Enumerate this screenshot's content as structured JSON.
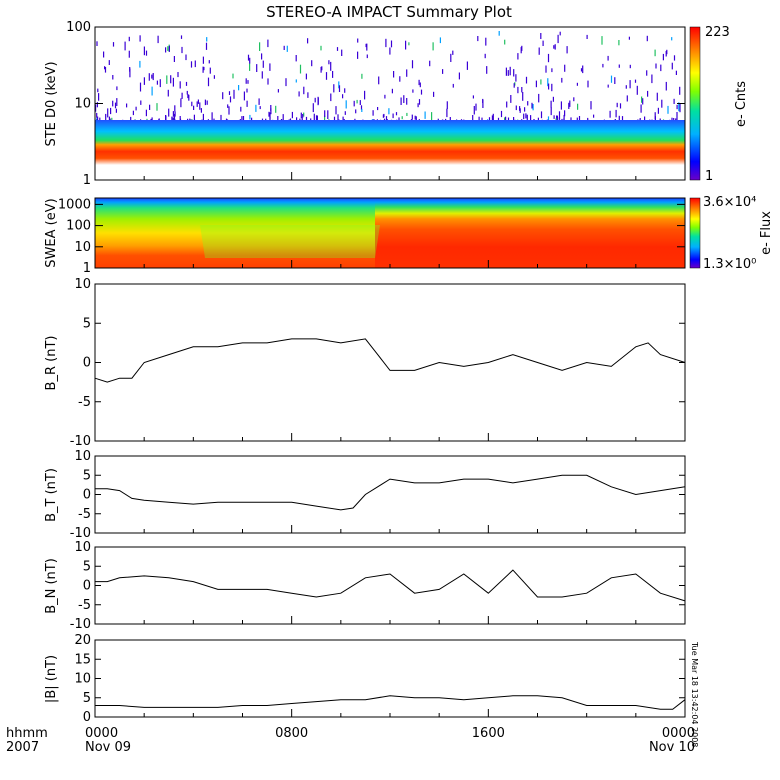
{
  "chart_data": [
    {
      "type": "heatmap",
      "title": "STEREO-A IMPACT Summary Plot",
      "ylabel": "STE D0 (keV)",
      "y_scale": "log",
      "ylim": [
        1,
        100
      ],
      "y_ticks": [
        "1",
        "10",
        "100"
      ],
      "colorbar_label": "e- Cnts",
      "colorbar_max": "223",
      "colorbar_min": "1"
    },
    {
      "type": "heatmap",
      "ylabel": "SWEA (eV)",
      "y_scale": "log",
      "ylim": [
        1,
        2000
      ],
      "y_ticks": [
        "1",
        "10",
        "100",
        "1000"
      ],
      "colorbar_label": "e- Flux",
      "colorbar_max": "3.6×10⁴",
      "colorbar_min": "1.3×10⁰"
    },
    {
      "type": "line",
      "ylabel": "B_R (nT)",
      "ylim": [
        -10,
        10
      ],
      "y_ticks": [
        "-10",
        "-5",
        "0",
        "5",
        "10"
      ],
      "x_hours": [
        0,
        0.5,
        1,
        1.5,
        2,
        3,
        4,
        5,
        6,
        7,
        8,
        9,
        10,
        11,
        11.5,
        12,
        13,
        14,
        15,
        16,
        17,
        18,
        19,
        20,
        21,
        22,
        22.5,
        23,
        24
      ],
      "values": [
        -2,
        -2.5,
        -2,
        -2,
        0,
        1,
        2,
        2,
        2.5,
        2.5,
        3,
        3,
        2.5,
        3,
        1,
        -1,
        -1,
        0,
        -0.5,
        0,
        1,
        0,
        -1,
        0,
        -0.5,
        2,
        2.5,
        1,
        0
      ]
    },
    {
      "type": "line",
      "ylabel": "B_T (nT)",
      "ylim": [
        -10,
        10
      ],
      "y_ticks": [
        "-10",
        "-5",
        "0",
        "5",
        "10"
      ],
      "x_hours": [
        0,
        0.5,
        1,
        1.5,
        2,
        3,
        4,
        5,
        6,
        7,
        8,
        9,
        10,
        10.5,
        11,
        11.5,
        12,
        13,
        14,
        15,
        16,
        17,
        18,
        19,
        20,
        21,
        22,
        23,
        24
      ],
      "values": [
        1.5,
        1.5,
        1,
        -1,
        -1.5,
        -2,
        -2.5,
        -2,
        -2,
        -2,
        -2,
        -3,
        -4,
        -3.5,
        0,
        2,
        4,
        3,
        3,
        4,
        4,
        3,
        4,
        5,
        5,
        2,
        0,
        1,
        2
      ]
    },
    {
      "type": "line",
      "ylabel": "B_N (nT)",
      "ylim": [
        -10,
        10
      ],
      "y_ticks": [
        "-10",
        "-5",
        "0",
        "5",
        "10"
      ],
      "x_hours": [
        0,
        0.5,
        1,
        2,
        3,
        4,
        5,
        6,
        7,
        8,
        9,
        10,
        11,
        12,
        13,
        14,
        15,
        16,
        17,
        18,
        19,
        20,
        21,
        22,
        23,
        24
      ],
      "values": [
        1,
        1,
        2,
        2.5,
        2,
        1,
        -1,
        -1,
        -1,
        -2,
        -3,
        -2,
        2,
        3,
        -2,
        -1,
        3,
        -2,
        4,
        -3,
        -3,
        -2,
        2,
        3,
        -2,
        -4
      ]
    },
    {
      "type": "line",
      "ylabel": "|B| (nT)",
      "ylim": [
        0,
        20
      ],
      "y_ticks": [
        "0",
        "5",
        "10",
        "15",
        "20"
      ],
      "x_hours": [
        0,
        1,
        2,
        3,
        4,
        5,
        6,
        7,
        8,
        9,
        10,
        11,
        12,
        13,
        14,
        15,
        16,
        17,
        18,
        19,
        20,
        21,
        22,
        23,
        23.5,
        24
      ],
      "values": [
        3,
        3,
        2.5,
        2.5,
        2.5,
        2.5,
        3,
        3,
        3.5,
        4,
        4.5,
        4.5,
        5.5,
        5,
        5,
        4.5,
        5,
        5.5,
        5.5,
        5,
        3,
        3,
        3,
        2,
        2,
        4.5
      ]
    }
  ],
  "x_axis": {
    "left_labels": [
      "hhmm",
      "2007"
    ],
    "ticks": [
      {
        "hour": 0,
        "time": "0000",
        "date": "Nov 09"
      },
      {
        "hour": 8,
        "time": "0800",
        "date": ""
      },
      {
        "hour": 16,
        "time": "1600",
        "date": ""
      },
      {
        "hour": 24,
        "time": "0000",
        "date": "Nov 10"
      }
    ]
  },
  "timestamp": "Tue Mar 18 13:42:04 2008",
  "colors": {
    "ste_background": "#ffffff",
    "speckle": "#3a00d6",
    "high_band": "#e02020"
  }
}
